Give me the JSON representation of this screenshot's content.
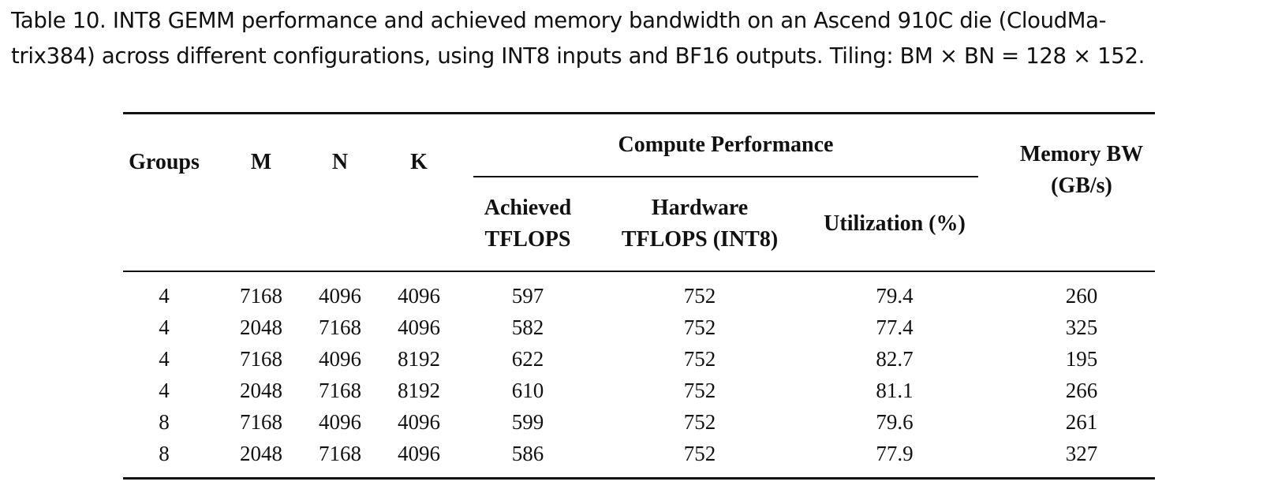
{
  "caption": {
    "line1": "Table 10.  INT8 GEMM performance and achieved memory bandwidth on an Ascend 910C die (CloudMa-",
    "line2": "trix384) across different configurations, using INT8 inputs and BF16 outputs. Tiling: BM × BN = 128 × 152."
  },
  "table": {
    "headers": {
      "groups": "Groups",
      "m": "M",
      "n": "N",
      "k": "K",
      "compute_group": "Compute Performance",
      "achieved_l1": "Achieved",
      "achieved_l2": "TFLOPS",
      "hardware_l1": "Hardware",
      "hardware_l2": "TFLOPS (INT8)",
      "utilization": "Utilization (%)",
      "membw_l1": "Memory BW",
      "membw_l2": "(GB/s)"
    },
    "rows": [
      {
        "groups": "4",
        "m": "7168",
        "n": "4096",
        "k": "4096",
        "achieved": "597",
        "hardware": "752",
        "utilization": "79.4",
        "membw": "260"
      },
      {
        "groups": "4",
        "m": "2048",
        "n": "7168",
        "k": "4096",
        "achieved": "582",
        "hardware": "752",
        "utilization": "77.4",
        "membw": "325"
      },
      {
        "groups": "4",
        "m": "7168",
        "n": "4096",
        "k": "8192",
        "achieved": "622",
        "hardware": "752",
        "utilization": "82.7",
        "membw": "195"
      },
      {
        "groups": "4",
        "m": "2048",
        "n": "7168",
        "k": "8192",
        "achieved": "610",
        "hardware": "752",
        "utilization": "81.1",
        "membw": "266"
      },
      {
        "groups": "8",
        "m": "7168",
        "n": "4096",
        "k": "4096",
        "achieved": "599",
        "hardware": "752",
        "utilization": "79.6",
        "membw": "261"
      },
      {
        "groups": "8",
        "m": "2048",
        "n": "7168",
        "k": "4096",
        "achieved": "586",
        "hardware": "752",
        "utilization": "77.9",
        "membw": "327"
      }
    ]
  }
}
